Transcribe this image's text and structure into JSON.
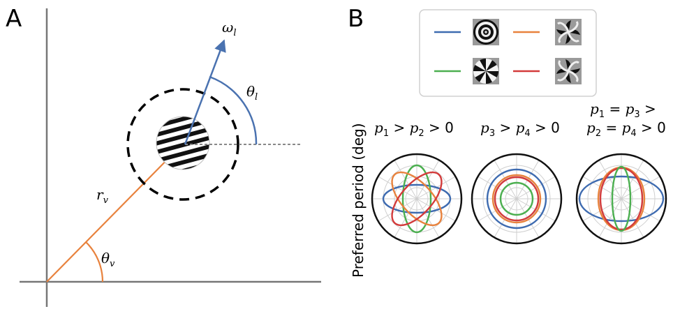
{
  "panel_a": {
    "letter": "A",
    "labels": {
      "omega": {
        "sym": "ω",
        "sub": "l"
      },
      "theta_l": {
        "sym": "θ",
        "sub": "l"
      },
      "r_v": {
        "sym": "r",
        "sub": "v"
      },
      "theta_v": {
        "sym": "θ",
        "sub": "v"
      }
    },
    "colors": {
      "local_vector": "#4a72b0",
      "visual_vector": "#e8823d",
      "axis": "#777777"
    }
  },
  "panel_b": {
    "letter": "B",
    "ylabel": "Preferred period (deg)",
    "legend": [
      {
        "color": "#3e6bb0",
        "icon": "annulus-stimulus-icon"
      },
      {
        "color": "#e8823d",
        "icon": "spiral-ccw-stimulus-icon"
      },
      {
        "color": "#4caf50",
        "icon": "pinwheel-stimulus-icon"
      },
      {
        "color": "#d33b3b",
        "icon": "spiral-cw-stimulus-icon"
      }
    ],
    "conditions": [
      {
        "id": "p1_p2",
        "title_line1": {
          "a": "p",
          "a_sub": "1",
          "op1": " > ",
          "b": "p",
          "b_sub": "2",
          "op2": " > 0"
        }
      },
      {
        "id": "p3_p4",
        "title_line1": {
          "a": "p",
          "a_sub": "3",
          "op1": " > ",
          "b": "p",
          "b_sub": "4",
          "op2": " > 0"
        }
      },
      {
        "id": "equal",
        "title_line1": {
          "a": "p",
          "a_sub": "1",
          "op1": " = ",
          "b": "p",
          "b_sub": "3",
          "op2": " >"
        },
        "title_line2": {
          "a": "p",
          "a_sub": "2",
          "op1": " = ",
          "b": "p",
          "b_sub": "4",
          "op2": " > 0"
        }
      }
    ]
  }
}
